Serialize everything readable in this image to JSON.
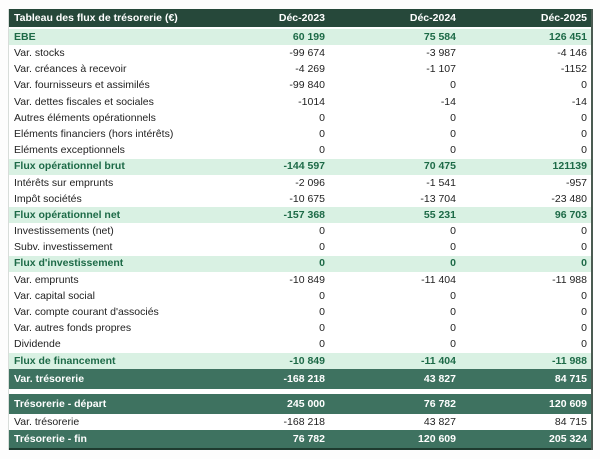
{
  "table": {
    "title": "Tableau des flux de trésorerie (€)",
    "columns": [
      "Déc-2023",
      "Déc-2024",
      "Déc-2025"
    ],
    "rows": [
      {
        "label": "EBE",
        "style": "section",
        "values": [
          "60 199",
          "75 584",
          "126 451"
        ]
      },
      {
        "label": "Var. stocks",
        "style": "normal",
        "values": [
          "-99 674",
          "-3 987",
          "-4 146"
        ]
      },
      {
        "label": "Var. créances à recevoir",
        "style": "normal",
        "values": [
          "-4 269",
          "-1 107",
          "-1152"
        ]
      },
      {
        "label": "Var. fournisseurs et assimilés",
        "style": "normal",
        "values": [
          "-99 840",
          "0",
          "0"
        ]
      },
      {
        "label": "Var. dettes fiscales et sociales",
        "style": "normal",
        "values": [
          "-1014",
          "-14",
          "-14"
        ]
      },
      {
        "label": "Autres éléments opérationnels",
        "style": "normal",
        "values": [
          "0",
          "0",
          "0"
        ]
      },
      {
        "label": "Eléments financiers (hors intérêts)",
        "style": "normal",
        "values": [
          "0",
          "0",
          "0"
        ]
      },
      {
        "label": "Eléments exceptionnels",
        "style": "normal",
        "values": [
          "0",
          "0",
          "0"
        ]
      },
      {
        "label": "Flux opérationnel brut",
        "style": "section",
        "values": [
          "-144 597",
          "70 475",
          "121139"
        ]
      },
      {
        "label": "Intérêts sur emprunts",
        "style": "normal",
        "values": [
          "-2 096",
          "-1 541",
          "-957"
        ]
      },
      {
        "label": "Impôt sociétés",
        "style": "normal",
        "values": [
          "-10 675",
          "-13 704",
          "-23 480"
        ]
      },
      {
        "label": "Flux opérationnel net",
        "style": "section",
        "values": [
          "-157 368",
          "55 231",
          "96 703"
        ]
      },
      {
        "label": "Investissements (net)",
        "style": "normal",
        "values": [
          "0",
          "0",
          "0"
        ]
      },
      {
        "label": "Subv. investissement",
        "style": "normal",
        "values": [
          "0",
          "0",
          "0"
        ]
      },
      {
        "label": "Flux d'investissement",
        "style": "section",
        "values": [
          "0",
          "0",
          "0"
        ]
      },
      {
        "label": "Var. emprunts",
        "style": "normal",
        "values": [
          "-10 849",
          "-11 404",
          "-11 988"
        ]
      },
      {
        "label": "Var. capital social",
        "style": "normal",
        "values": [
          "0",
          "0",
          "0"
        ]
      },
      {
        "label": "Var. compte courant d'associés",
        "style": "normal",
        "values": [
          "0",
          "0",
          "0"
        ]
      },
      {
        "label": "Var. autres fonds propres",
        "style": "normal",
        "values": [
          "0",
          "0",
          "0"
        ]
      },
      {
        "label": "Dividende",
        "style": "normal",
        "values": [
          "0",
          "0",
          "0"
        ]
      },
      {
        "label": "Flux de financement",
        "style": "section",
        "values": [
          "-10 849",
          "-11 404",
          "-11 988"
        ]
      },
      {
        "label": "Var. trésorerie",
        "style": "summary",
        "values": [
          "-168 218",
          "43 827",
          "84 715"
        ]
      },
      {
        "label": "",
        "style": "gap",
        "values": []
      },
      {
        "label": "Trésorerie - départ",
        "style": "summary",
        "values": [
          "245 000",
          "76 782",
          "120 609"
        ]
      },
      {
        "label": "Var. trésorerie",
        "style": "normal",
        "values": [
          "-168 218",
          "43 827",
          "84 715"
        ]
      },
      {
        "label": "Trésorerie - fin",
        "style": "summary",
        "values": [
          "76 782",
          "120 609",
          "205 324"
        ]
      }
    ]
  },
  "colors": {
    "header_bg": "#26483a",
    "section_row_bg": "#d9f1e3",
    "section_row_text": "#1d6a47",
    "summary_row_bg": "#3e7260",
    "header_text": "#ffffff",
    "body_text": "#222222",
    "page_bg": "#fdfdfd"
  }
}
